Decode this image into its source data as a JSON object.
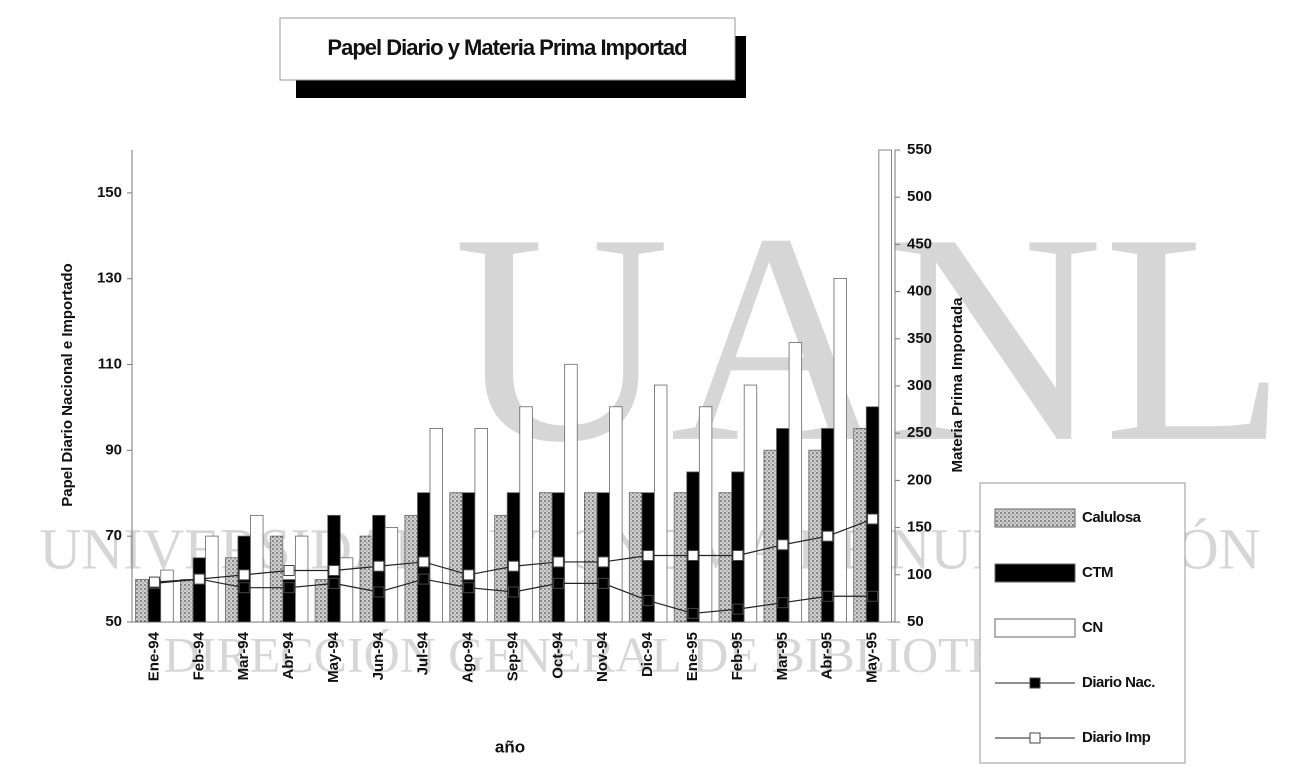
{
  "chart_data": {
    "type": "bar",
    "title": "Papel Diario y Materia Prima Importad",
    "xlabel": "año",
    "ylabel": "Papel Diario Nacional e Importado",
    "y2label": "Materia Prima Importada",
    "categories": [
      "Ene-94",
      "Feb-94",
      "Mar-94",
      "Abr-94",
      "May-94",
      "Jun-94",
      "Jul-94",
      "Ago-94",
      "Sep-94",
      "Oct-94",
      "Nov-94",
      "Dic-94",
      "Ene-95",
      "Feb-95",
      "Mar-95",
      "Abr-95",
      "May-95"
    ],
    "series": [
      {
        "name": "Calulosa",
        "type": "bar",
        "axis": "y2",
        "color": "#b8b8b8",
        "values": [
          95,
          95,
          118,
          141,
          95,
          141,
          163,
          187,
          163,
          187,
          187,
          187,
          187,
          187,
          232,
          232,
          255
        ]
      },
      {
        "name": "CTM",
        "type": "bar",
        "axis": "y2",
        "color": "#000000",
        "values": [
          95,
          118,
          141,
          95,
          163,
          163,
          187,
          187,
          187,
          187,
          187,
          187,
          209,
          209,
          255,
          255,
          278
        ]
      },
      {
        "name": "CN",
        "type": "bar",
        "axis": "y2",
        "color": "#ffffff",
        "values": [
          105,
          141,
          163,
          141,
          118,
          150,
          255,
          255,
          278,
          323,
          278,
          301,
          278,
          301,
          346,
          414,
          550
        ]
      },
      {
        "name": "Diario Nac.",
        "type": "line",
        "color": "#000000",
        "values": [
          59,
          60,
          58,
          58,
          59,
          57,
          60,
          58,
          57,
          59,
          59,
          55,
          52,
          53,
          54.5,
          56,
          56
        ]
      },
      {
        "name": "Diario Imp",
        "type": "line",
        "color": "#ffffff",
        "values": [
          59.3,
          60,
          61,
          62,
          62,
          63,
          64,
          61,
          63,
          64,
          64,
          65.5,
          65.5,
          65.5,
          68,
          70,
          74
        ]
      }
    ],
    "ylim": [
      50,
      160
    ],
    "yticks": [
      50,
      70,
      90,
      110,
      130,
      150
    ],
    "y2lim": [
      50,
      550
    ],
    "y2ticks": [
      50,
      100,
      150,
      200,
      250,
      300,
      350,
      400,
      450,
      500,
      550
    ],
    "legend": "right",
    "grid": false,
    "watermark": [
      "UANL",
      "UNIVERSIDAD AUTÓNOMA DE NUEVO LEÓN",
      "DIRECCIÓN GENERAL DE BIBLIOTECAS"
    ]
  }
}
